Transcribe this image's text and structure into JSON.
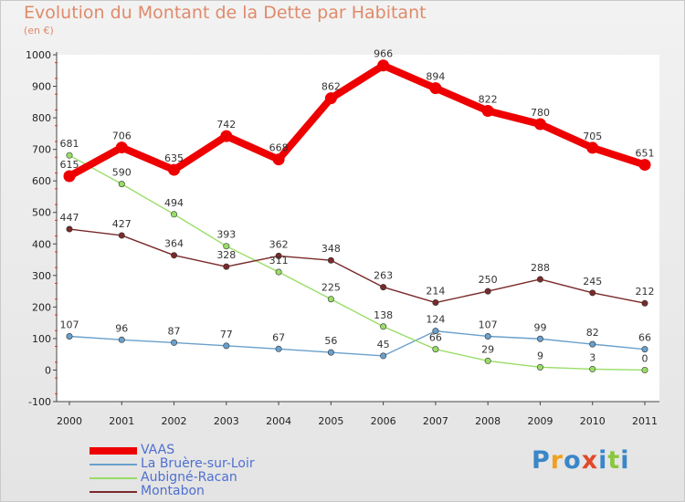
{
  "header": {
    "title": "Evolution du Montant de la Dette par Habitant",
    "unit": "(en €)"
  },
  "logo": {
    "letters": [
      {
        "ch": "P",
        "color": "#3a86c8"
      },
      {
        "ch": "r",
        "color": "#f0a020"
      },
      {
        "ch": "o",
        "color": "#3a86c8"
      },
      {
        "ch": "x",
        "color": "#e04a2a"
      },
      {
        "ch": "i",
        "color": "#3a86c8"
      },
      {
        "ch": "t",
        "color": "#8cc63f"
      },
      {
        "ch": "i",
        "color": "#3a86c8"
      }
    ]
  },
  "chart_data": {
    "type": "line",
    "title": "Evolution du Montant de la Dette par Habitant",
    "subtitle": "(en €)",
    "x": [
      "2000",
      "2001",
      "2002",
      "2003",
      "2004",
      "2005",
      "2006",
      "2007",
      "2008",
      "2009",
      "2010",
      "2011"
    ],
    "ylim": [
      -100,
      1000
    ],
    "yticks": [
      "-100",
      "0",
      "100",
      "200",
      "300",
      "400",
      "500",
      "600",
      "700",
      "800",
      "900",
      "1000"
    ],
    "grid": false,
    "legend": "bottom-left",
    "series": [
      {
        "name": "VAAS",
        "color": "#ee0000",
        "values": [
          615,
          706,
          635,
          742,
          668,
          862,
          966,
          894,
          822,
          780,
          705,
          651
        ]
      },
      {
        "name": "La Bruère-sur-Loir",
        "color": "#6aa0cc",
        "values": [
          107,
          96,
          87,
          77,
          67,
          56,
          45,
          124,
          107,
          99,
          82,
          66
        ]
      },
      {
        "name": "Aubigné-Racan",
        "color": "#99dd66",
        "values": [
          681,
          590,
          494,
          393,
          311,
          225,
          138,
          66,
          29,
          9,
          3,
          0
        ]
      },
      {
        "name": "Montabon",
        "color": "#7a2a2a",
        "values": [
          447,
          427,
          364,
          328,
          362,
          348,
          263,
          214,
          250,
          288,
          245,
          212
        ]
      }
    ]
  }
}
